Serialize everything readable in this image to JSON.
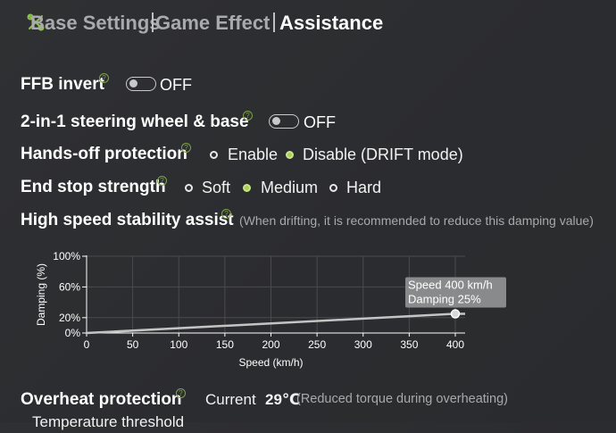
{
  "tabs": [
    {
      "label": "Base Settings"
    },
    {
      "label": "Game Effect"
    },
    {
      "label": "Assistance"
    }
  ],
  "settings": {
    "ffb_invert": {
      "label": "FFB invert",
      "value": "OFF"
    },
    "two_in_one": {
      "label": "2-in-1 steering wheel & base",
      "value": "OFF"
    },
    "hands_off": {
      "label": "Hands-off protection",
      "options": [
        "Enable",
        "Disable (DRIFT mode)"
      ],
      "selected": 1
    },
    "end_stop": {
      "label": "End stop strength",
      "options": [
        "Soft",
        "Medium",
        "Hard"
      ],
      "selected": 1
    },
    "high_speed": {
      "label": "High speed stability assist",
      "hint": "(When drifting, it is recommended to reduce this damping value)"
    },
    "overheat": {
      "label": "Overheat protection",
      "current_label": "Current",
      "current_value": "29℃",
      "hint": "(Reduced torque during overheating)"
    },
    "temperature": {
      "label": "Temperature threshold"
    }
  },
  "chart_data": {
    "type": "line",
    "ylabel": "Damping (%)",
    "xlabel": "Speed (km/h)",
    "x_ticks": [
      "0",
      "50",
      "100",
      "150",
      "200",
      "250",
      "300",
      "350",
      "400"
    ],
    "y_ticks": [
      "0%",
      "20%",
      "60%",
      "100%"
    ],
    "xlim": [
      0,
      410
    ],
    "ylim": [
      0,
      100
    ],
    "series": [
      {
        "x": [
          0,
          400
        ],
        "y": [
          0,
          25
        ]
      }
    ],
    "tooltip": {
      "line1": "Speed 400 km/h",
      "line2": "Damping 25%"
    },
    "grid": true,
    "colors": {
      "line": "#c4c4c4",
      "grid": "#4a4b4e",
      "tooltip_bg": "#8e8f91"
    }
  },
  "colors": {
    "accent": "#a7d24a",
    "background": "#2e2f32"
  }
}
